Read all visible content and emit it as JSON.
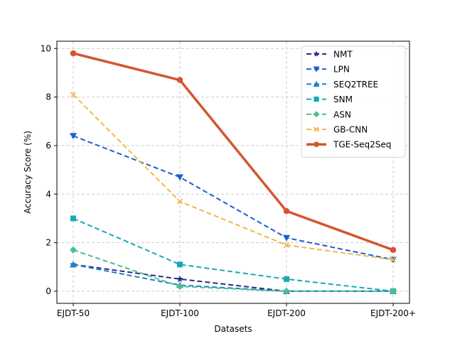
{
  "chart_data": {
    "type": "line",
    "title": "",
    "xlabel": "Datasets",
    "ylabel": "Accuracy Score (%)",
    "categories": [
      "EJDT-50",
      "EJDT-100",
      "EJDT-200",
      "EJDT-200+"
    ],
    "ylim": [
      -0.5,
      10.3
    ],
    "yticks": [
      0,
      2,
      4,
      6,
      8,
      10
    ],
    "grid": true,
    "legend_position": "top-right",
    "series": [
      {
        "name": "NMT",
        "values": [
          1.1,
          0.5,
          0.0,
          0.0
        ],
        "color": "#2e2a8a",
        "marker": "star",
        "dash": "dashed",
        "width": 2
      },
      {
        "name": "LPN",
        "values": [
          6.4,
          4.7,
          2.2,
          1.3
        ],
        "color": "#1560d4",
        "marker": "triangle-down",
        "dash": "dashed",
        "width": 2
      },
      {
        "name": "SEQ2TREE",
        "values": [
          1.1,
          0.25,
          0.0,
          0.0
        ],
        "color": "#1f7fc8",
        "marker": "triangle-up",
        "dash": "dashed",
        "width": 2
      },
      {
        "name": "SNM",
        "values": [
          3.0,
          1.1,
          0.5,
          0.0
        ],
        "color": "#18a9b8",
        "marker": "square",
        "dash": "dashed",
        "width": 2
      },
      {
        "name": "ASN",
        "values": [
          1.7,
          0.2,
          0.0,
          0.0
        ],
        "color": "#4dbf8f",
        "marker": "diamond",
        "dash": "dashed",
        "width": 2
      },
      {
        "name": "GB-CNN",
        "values": [
          8.1,
          3.7,
          1.9,
          1.3
        ],
        "color": "#f0b848",
        "marker": "x",
        "dash": "dashed",
        "width": 2
      },
      {
        "name": "TGE-Seq2Seq",
        "values": [
          9.8,
          8.7,
          3.3,
          1.7
        ],
        "color": "#d45530",
        "marker": "circle",
        "dash": "solid",
        "width": 3.5
      }
    ]
  }
}
